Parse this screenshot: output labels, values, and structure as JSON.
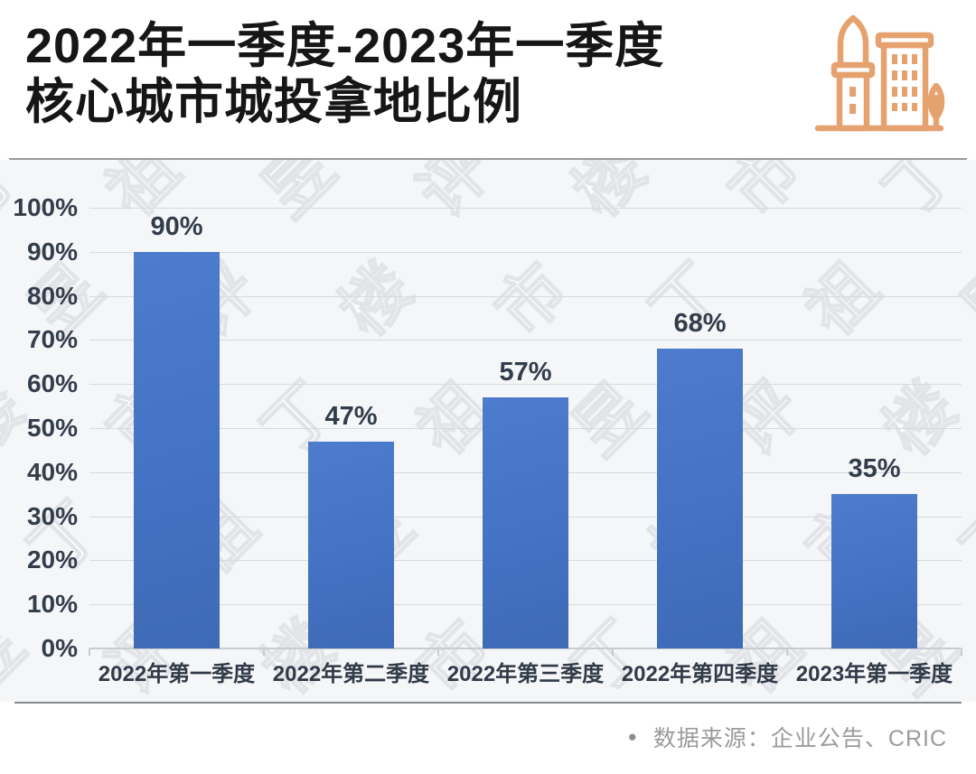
{
  "header": {
    "title_line1": "2022年一季度-2023年一季度",
    "title_line2": "核心城市城投拿地比例",
    "icon": {
      "name": "buildings-icon",
      "color": "#E6A26E"
    }
  },
  "watermark": {
    "chars": [
      "丁",
      "祖",
      "昱",
      "评",
      "楼",
      "市"
    ]
  },
  "chart_data": {
    "type": "bar",
    "title": "2022年一季度-2023年一季度核心城市城投拿地比例",
    "categories": [
      "2022年第一季度",
      "2022年第二季度",
      "2022年第三季度",
      "2022年第四季度",
      "2023年第一季度"
    ],
    "values": [
      90,
      47,
      57,
      68,
      35
    ],
    "value_labels": [
      "90%",
      "47%",
      "57%",
      "68%",
      "35%"
    ],
    "xlabel": "",
    "ylabel": "",
    "ylim": [
      0,
      100
    ],
    "y_ticks": [
      "0%",
      "10%",
      "20%",
      "30%",
      "40%",
      "50%",
      "60%",
      "70%",
      "80%",
      "90%",
      "100%"
    ],
    "grid": true,
    "legend": false,
    "bar_color": "#4472C4",
    "background": "#f5f6f8"
  },
  "footer": {
    "bullet": "●",
    "source_text": "数据来源：企业公告、CRIC"
  }
}
